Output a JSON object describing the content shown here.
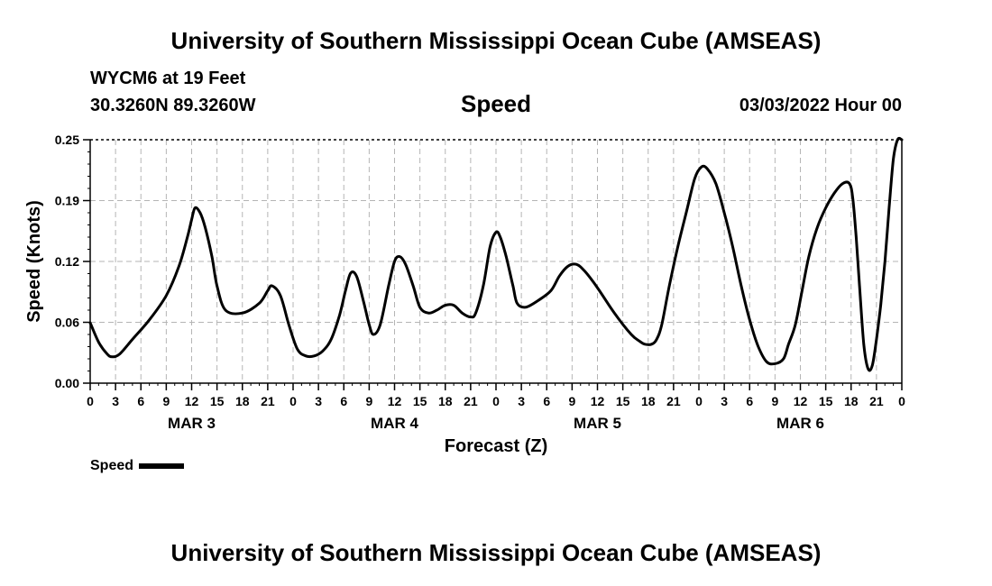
{
  "header": {
    "title": "University of Southern Mississippi Ocean Cube (AMSEAS)",
    "station": "WYCM6 at 19 Feet",
    "coords": "30.3260N  89.3260W",
    "datetime": "03/03/2022 Hour 00"
  },
  "footer": {
    "title": "University of Southern Mississippi Ocean Cube (AMSEAS)"
  },
  "chart_data": {
    "type": "line",
    "title": "Speed",
    "xlabel": "Forecast (Z)",
    "ylabel": "Speed (Knots)",
    "ylim": [
      0,
      0.25
    ],
    "yticks": [
      "0.00",
      "0.06",
      "0.12",
      "0.19",
      "0.25"
    ],
    "ytick_values": [
      0,
      0.0625,
      0.125,
      0.1875,
      0.25
    ],
    "xlim": [
      0,
      96
    ],
    "xticks": [
      {
        "h": 0,
        "label": "0"
      },
      {
        "h": 3,
        "label": "3"
      },
      {
        "h": 6,
        "label": "6"
      },
      {
        "h": 9,
        "label": "9"
      },
      {
        "h": 12,
        "label": "12"
      },
      {
        "h": 15,
        "label": "15"
      },
      {
        "h": 18,
        "label": "18"
      },
      {
        "h": 21,
        "label": "21"
      },
      {
        "h": 24,
        "label": "0"
      },
      {
        "h": 27,
        "label": "3"
      },
      {
        "h": 30,
        "label": "6"
      },
      {
        "h": 33,
        "label": "9"
      },
      {
        "h": 36,
        "label": "12"
      },
      {
        "h": 39,
        "label": "15"
      },
      {
        "h": 42,
        "label": "18"
      },
      {
        "h": 45,
        "label": "21"
      },
      {
        "h": 48,
        "label": "0"
      },
      {
        "h": 51,
        "label": "3"
      },
      {
        "h": 54,
        "label": "6"
      },
      {
        "h": 57,
        "label": "9"
      },
      {
        "h": 60,
        "label": "12"
      },
      {
        "h": 63,
        "label": "15"
      },
      {
        "h": 66,
        "label": "18"
      },
      {
        "h": 69,
        "label": "21"
      },
      {
        "h": 72,
        "label": "0"
      },
      {
        "h": 75,
        "label": "3"
      },
      {
        "h": 78,
        "label": "6"
      },
      {
        "h": 81,
        "label": "9"
      },
      {
        "h": 84,
        "label": "12"
      },
      {
        "h": 87,
        "label": "15"
      },
      {
        "h": 90,
        "label": "18"
      },
      {
        "h": 93,
        "label": "21"
      },
      {
        "h": 96,
        "label": "0"
      }
    ],
    "day_labels": [
      {
        "h": 12,
        "label": "MAR 3"
      },
      {
        "h": 36,
        "label": "MAR 4"
      },
      {
        "h": 60,
        "label": "MAR 5"
      },
      {
        "h": 84,
        "label": "MAR 6"
      }
    ],
    "legend": "Speed",
    "series": [
      {
        "name": "Speed",
        "x": [
          0,
          1,
          2,
          2.6,
          3.5,
          5,
          7,
          9,
          10.5,
          11.5,
          12,
          12.4,
          13,
          13.6,
          14.4,
          15,
          16,
          18,
          20,
          21,
          21.5,
          22.5,
          23.5,
          24.5,
          25.5,
          26.5,
          27.5,
          28.5,
          29.5,
          30.2,
          30.8,
          31.5,
          32.3,
          33,
          33.5,
          34.3,
          35.3,
          36,
          36.6,
          37.3,
          38.2,
          39,
          40,
          41,
          42,
          43,
          44,
          45,
          45.6,
          46.5,
          47.3,
          48,
          48.5,
          49.2,
          50,
          50.5,
          51.5,
          53,
          54.5,
          55.5,
          56.5,
          57.5,
          58.5,
          60,
          62,
          64,
          65,
          65.6,
          66.4,
          67,
          67.6,
          68.5,
          69.5,
          70.5,
          71.5,
          72.3,
          73,
          74,
          75,
          76,
          77,
          78,
          79,
          80,
          81,
          82,
          82.6,
          83.4,
          84.2,
          85,
          86,
          87,
          88,
          89,
          89.8,
          90.2,
          90.6,
          91,
          91.5,
          92,
          92.5,
          93,
          93.5,
          94,
          94.5,
          95,
          95.5,
          96
        ],
        "values": [
          0.062,
          0.042,
          0.03,
          0.027,
          0.03,
          0.045,
          0.065,
          0.09,
          0.12,
          0.15,
          0.168,
          0.18,
          0.175,
          0.16,
          0.13,
          0.1,
          0.075,
          0.072,
          0.082,
          0.095,
          0.1,
          0.09,
          0.06,
          0.035,
          0.028,
          0.028,
          0.033,
          0.045,
          0.07,
          0.095,
          0.113,
          0.11,
          0.085,
          0.06,
          0.05,
          0.06,
          0.1,
          0.125,
          0.13,
          0.122,
          0.1,
          0.078,
          0.072,
          0.075,
          0.08,
          0.08,
          0.072,
          0.068,
          0.072,
          0.1,
          0.14,
          0.155,
          0.15,
          0.13,
          0.1,
          0.082,
          0.078,
          0.085,
          0.095,
          0.11,
          0.12,
          0.122,
          0.115,
          0.098,
          0.072,
          0.05,
          0.043,
          0.04,
          0.04,
          0.045,
          0.06,
          0.1,
          0.14,
          0.175,
          0.21,
          0.222,
          0.22,
          0.205,
          0.175,
          0.14,
          0.1,
          0.065,
          0.038,
          0.022,
          0.02,
          0.025,
          0.04,
          0.06,
          0.095,
          0.13,
          0.16,
          0.18,
          0.195,
          0.205,
          0.205,
          0.19,
          0.15,
          0.1,
          0.04,
          0.015,
          0.018,
          0.045,
          0.08,
          0.125,
          0.18,
          0.23,
          0.255,
          0.25
        ]
      }
    ]
  }
}
